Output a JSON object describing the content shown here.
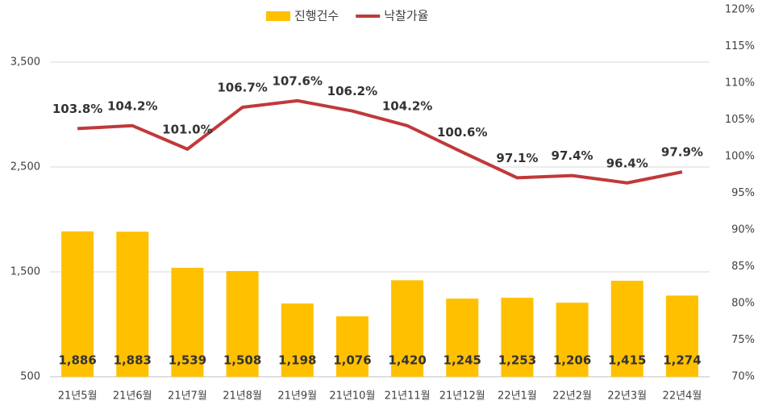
{
  "chart_data": {
    "type": "bar",
    "categories": [
      "21년5월",
      "21년6월",
      "21년7월",
      "21년8월",
      "21년9월",
      "21년10월",
      "21년11월",
      "21년12월",
      "22년1월",
      "22년2월",
      "22년3월",
      "22년4월"
    ],
    "series": [
      {
        "name": "진행건수",
        "type": "bar",
        "color": "#FFC000",
        "values": [
          1886,
          1883,
          1539,
          1508,
          1198,
          1076,
          1420,
          1245,
          1253,
          1206,
          1415,
          1274
        ],
        "value_labels": [
          "1,886",
          "1,883",
          "1,539",
          "1,508",
          "1,198",
          "1,076",
          "1,420",
          "1,245",
          "1,253",
          "1,206",
          "1,415",
          "1,274"
        ]
      },
      {
        "name": "낙찰가율",
        "type": "line",
        "axis": "y2",
        "color": "#C0393B",
        "values": [
          103.8,
          104.2,
          101.0,
          106.7,
          107.6,
          106.2,
          104.2,
          100.6,
          97.1,
          97.4,
          96.4,
          97.9
        ],
        "value_labels": [
          "103.8%",
          "104.2%",
          "101.0%",
          "106.7%",
          "107.6%",
          "106.2%",
          "104.2%",
          "100.6%",
          "97.1%",
          "97.4%",
          "96.4%",
          "97.9%"
        ]
      }
    ],
    "ylim": [
      500,
      4000
    ],
    "yticks": [
      {
        "value": 500,
        "label": "500"
      },
      {
        "value": 1500,
        "label": "1,500"
      },
      {
        "value": 2500,
        "label": "2,500"
      },
      {
        "value": 3500,
        "label": "3,500"
      }
    ],
    "y2lim": [
      70,
      120
    ],
    "y2ticks": [
      {
        "value": 70,
        "label": "70%"
      },
      {
        "value": 75,
        "label": "75%"
      },
      {
        "value": 80,
        "label": "80%"
      },
      {
        "value": 85,
        "label": "85%"
      },
      {
        "value": 90,
        "label": "90%"
      },
      {
        "value": 95,
        "label": "95%"
      },
      {
        "value": 100,
        "label": "100%"
      },
      {
        "value": 105,
        "label": "105%"
      },
      {
        "value": 110,
        "label": "110%"
      },
      {
        "value": 115,
        "label": "115%"
      },
      {
        "value": 120,
        "label": "120%"
      }
    ],
    "grid": true,
    "legend": "top"
  }
}
